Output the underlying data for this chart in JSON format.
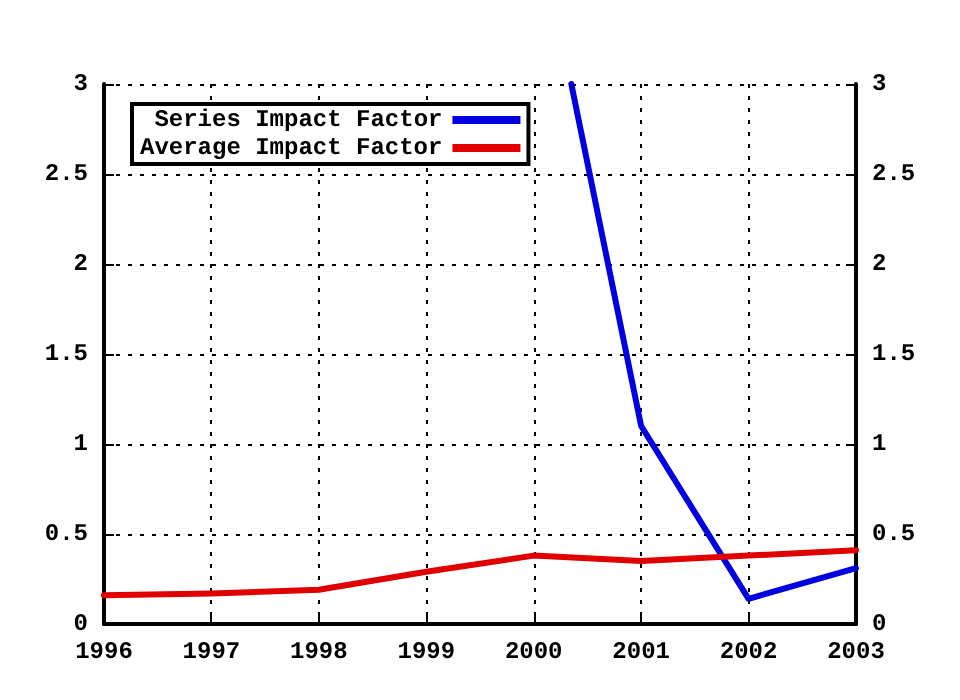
{
  "chart_data": {
    "type": "line",
    "series": [
      {
        "name": "Series Impact Factor",
        "color": "#0000e0",
        "x": [
          2000.35,
          2001,
          2002,
          2003
        ],
        "values": [
          3,
          1.1,
          0.14,
          0.31
        ]
      },
      {
        "name": "Average Impact Factor",
        "color": "#e00000",
        "x": [
          1996,
          1997,
          1998,
          1999,
          2000,
          2001,
          2002,
          2003
        ],
        "values": [
          0.16,
          0.17,
          0.19,
          0.29,
          0.38,
          0.35,
          0.38,
          0.41
        ]
      }
    ],
    "xlim": [
      1996,
      2003
    ],
    "xticks": [
      1996,
      1997,
      1998,
      1999,
      2000,
      2001,
      2002,
      2003
    ],
    "ylim": [
      0,
      3
    ],
    "yticks": [
      0,
      0.5,
      1,
      1.5,
      2,
      2.5,
      3
    ],
    "y2lim": [
      0,
      3
    ],
    "y2ticks": [
      0,
      0.5,
      1,
      1.5,
      2,
      2.5,
      3
    ],
    "grid": true,
    "legend": "top left",
    "marker": "none",
    "line_style": "solid"
  }
}
